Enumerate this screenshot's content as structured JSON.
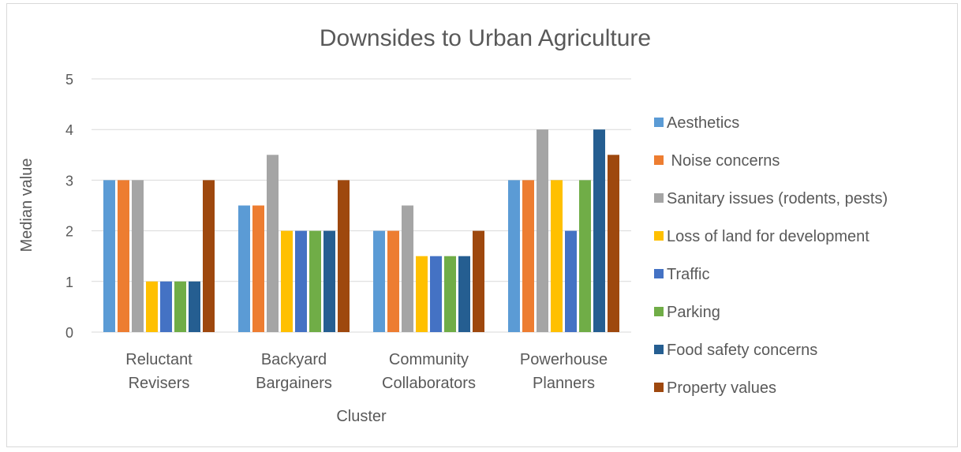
{
  "chart_data": {
    "type": "bar",
    "title": "Downsides to Urban Agriculture",
    "xlabel": "Cluster",
    "ylabel": "Median value",
    "ylim": [
      0,
      5
    ],
    "yticks": [
      0,
      1,
      2,
      3,
      4,
      5
    ],
    "grid": true,
    "legend_position": "right",
    "categories": [
      [
        "Reluctant",
        "Revisers"
      ],
      [
        "Backyard",
        "Bargainers"
      ],
      [
        "Community",
        "Collaborators"
      ],
      [
        "Powerhouse",
        "Planners"
      ]
    ],
    "series": [
      {
        "name": "Aesthetics",
        "color": "#5b9bd5",
        "values": [
          3,
          2.5,
          2,
          3
        ]
      },
      {
        "name": " Noise concerns",
        "color": "#ed7d31",
        "values": [
          3,
          2.5,
          2,
          3
        ]
      },
      {
        "name": "Sanitary issues (rodents, pests)",
        "color": "#a5a5a5",
        "values": [
          3,
          3.5,
          2.5,
          4
        ]
      },
      {
        "name": "Loss of land for development",
        "color": "#ffc000",
        "values": [
          1,
          2,
          1.5,
          3
        ]
      },
      {
        "name": "Traffic",
        "color": "#4472c4",
        "values": [
          1,
          2,
          1.5,
          2
        ]
      },
      {
        "name": "Parking",
        "color": "#70ad47",
        "values": [
          1,
          2,
          1.5,
          3
        ]
      },
      {
        "name": "Food safety concerns",
        "color": "#255e91",
        "values": [
          1,
          2,
          1.5,
          4
        ]
      },
      {
        "name": "Property values",
        "color": "#9e480e",
        "values": [
          3,
          3,
          2,
          3.5
        ]
      }
    ]
  }
}
